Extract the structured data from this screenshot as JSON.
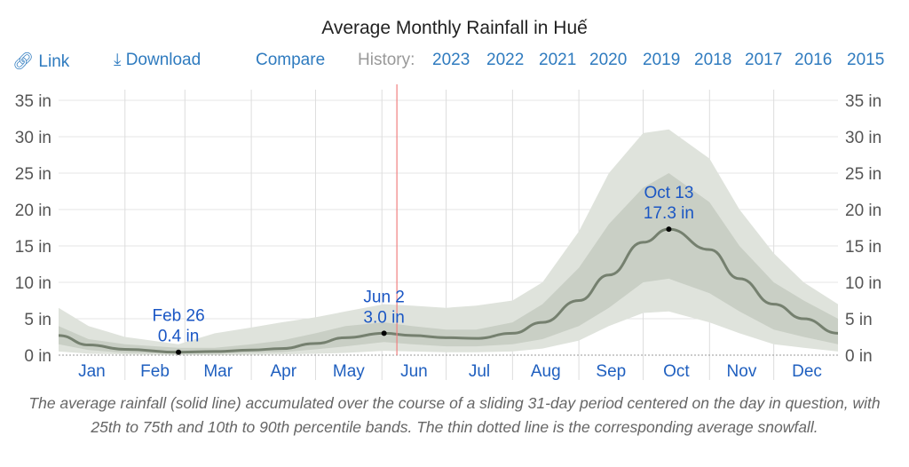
{
  "title": "Average Monthly Rainfall in Huế",
  "toolbar": {
    "link": "Link",
    "download": "Download",
    "compare": "Compare",
    "history_label": "History:",
    "years": [
      "2023",
      "2022",
      "2021",
      "2020",
      "2019",
      "2018",
      "2017",
      "2016",
      "2015"
    ]
  },
  "caption": "The average rainfall (solid line) accumulated over the course of a sliding 31-day period centered on the day in question, with 25th to 75th and 10th to 90th percentile bands. The thin dotted line is the corresponding average snowfall.",
  "colors": {
    "line": "#75806f",
    "band_inner": "#c9cfc5",
    "band_outer": "#dfe3dc",
    "today_line": "#f08080",
    "link": "#2f7bbf",
    "annotation": "#1a56c4"
  },
  "chart_data": {
    "type": "area",
    "ylim": [
      0,
      35
    ],
    "yticks": [
      "0 in",
      "5 in",
      "10 in",
      "15 in",
      "20 in",
      "25 in",
      "30 in",
      "35 in"
    ],
    "ytick_values": [
      0,
      5,
      10,
      15,
      20,
      25,
      30,
      35
    ],
    "months": [
      "Jan",
      "Feb",
      "Mar",
      "Apr",
      "May",
      "Jun",
      "Jul",
      "Aug",
      "Sep",
      "Oct",
      "Nov",
      "Dec"
    ],
    "grid": true,
    "today_marker": "Jun 8",
    "x": [
      "Jan 1",
      "Jan 15",
      "Feb 1",
      "Feb 26",
      "Mar 15",
      "Apr 1",
      "Apr 15",
      "May 1",
      "May 15",
      "Jun 2",
      "Jun 15",
      "Jul 1",
      "Jul 15",
      "Aug 1",
      "Aug 15",
      "Sep 1",
      "Sep 15",
      "Oct 1",
      "Oct 13",
      "Nov 1",
      "Nov 15",
      "Dec 1",
      "Dec 15",
      "Dec 31"
    ],
    "mean": [
      2.7,
      1.4,
      0.8,
      0.4,
      0.5,
      0.7,
      0.9,
      1.6,
      2.4,
      3.0,
      2.7,
      2.4,
      2.3,
      3.0,
      4.5,
      7.5,
      11,
      15.5,
      17.3,
      14.5,
      10.5,
      7,
      5,
      3.0
    ],
    "p10": [
      0.5,
      0.2,
      0.1,
      0,
      0,
      0.05,
      0.1,
      0.2,
      0.3,
      0.6,
      0.5,
      0.4,
      0.4,
      0.5,
      0.9,
      2,
      4,
      5.8,
      6,
      4.5,
      3,
      1.5,
      1,
      0.5
    ],
    "p25": [
      1.5,
      0.7,
      0.3,
      0.2,
      0.2,
      0.3,
      0.4,
      0.8,
      1.2,
      1.8,
      1.5,
      1.2,
      1.2,
      1.5,
      2.2,
      4,
      6.5,
      10,
      10.5,
      8.5,
      6,
      3.5,
      2.5,
      1.5
    ],
    "p75": [
      4,
      2.2,
      1.5,
      1,
      1,
      1.5,
      2,
      3,
      4,
      4.5,
      4,
      3.5,
      3.5,
      4.5,
      7,
      12,
      18,
      23,
      25,
      21,
      15,
      10,
      7.5,
      5
    ],
    "p90": [
      6.5,
      4,
      2.5,
      1.5,
      3,
      3.8,
      4.5,
      5.2,
      6,
      7,
      6.8,
      6.5,
      6.8,
      7.5,
      10,
      17,
      25,
      30.5,
      31,
      27,
      20,
      14,
      10,
      7
    ],
    "annotations": [
      {
        "date": "Feb 26",
        "value": 0.4,
        "label1": "Feb 26",
        "label2": "0.4 in"
      },
      {
        "date": "Jun 2",
        "value": 3.0,
        "label1": "Jun 2",
        "label2": "3.0 in"
      },
      {
        "date": "Oct 13",
        "value": 17.3,
        "label1": "Oct 13",
        "label2": "17.3 in"
      }
    ]
  }
}
